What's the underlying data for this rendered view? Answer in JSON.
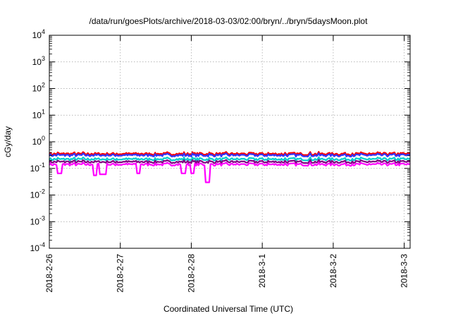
{
  "chart_data": {
    "type": "line",
    "title": "/data/run/goesPlots/archive/2018-03-03/02:00/bryn/../bryn/5daysMoon.plot",
    "xlabel": "Coordinated Universal Time (UTC)",
    "ylabel": "cGy/day",
    "yscale": "log",
    "ylim": [
      0.0001,
      10000
    ],
    "yticks": [
      {
        "value": 0.0001,
        "base": "10",
        "exp": "-4"
      },
      {
        "value": 0.001,
        "base": "10",
        "exp": "-3"
      },
      {
        "value": 0.01,
        "base": "10",
        "exp": "-2"
      },
      {
        "value": 0.1,
        "base": "10",
        "exp": "-1"
      },
      {
        "value": 1,
        "base": "10",
        "exp": "0"
      },
      {
        "value": 10,
        "base": "10",
        "exp": "1"
      },
      {
        "value": 100,
        "base": "10",
        "exp": "2"
      },
      {
        "value": 1000,
        "base": "10",
        "exp": "3"
      },
      {
        "value": 10000,
        "base": "10",
        "exp": "4"
      }
    ],
    "xlim": [
      "2018-02-26T00:00",
      "2018-03-03T02:00"
    ],
    "xticks": [
      {
        "value": "2018-02-26T00:00",
        "label": "2018-2-26"
      },
      {
        "value": "2018-02-27T00:00",
        "label": "2018-2-27"
      },
      {
        "value": "2018-02-28T00:00",
        "label": "2018-2-28"
      },
      {
        "value": "2018-03-01T00:00",
        "label": "2018-3-1"
      },
      {
        "value": "2018-03-02T00:00",
        "label": "2018-3-2"
      },
      {
        "value": "2018-03-03T00:00",
        "label": "2018-3-3"
      }
    ],
    "grid": true,
    "series": [
      {
        "color": "#ff0000",
        "base": 0.35,
        "dips": []
      },
      {
        "color": "#3333ff",
        "base": 0.31,
        "dips": []
      },
      {
        "color": "#00cccc",
        "base": 0.22,
        "dips": []
      },
      {
        "color": "#800080",
        "base": 0.175,
        "dips": []
      },
      {
        "color": "#ff00ff",
        "base": 0.14,
        "dips": [
          {
            "time": "2018-02-26T03:30",
            "value": 0.065
          },
          {
            "time": "2018-02-26T15:30",
            "value": 0.055
          },
          {
            "time": "2018-02-26T17:30",
            "value": 0.06
          },
          {
            "time": "2018-02-26T18:30",
            "value": 0.06
          },
          {
            "time": "2018-02-27T06:00",
            "value": 0.065
          },
          {
            "time": "2018-02-27T21:20",
            "value": 0.065
          },
          {
            "time": "2018-02-28T00:20",
            "value": 0.065
          },
          {
            "time": "2018-02-28T05:30",
            "value": 0.03
          }
        ]
      }
    ]
  }
}
